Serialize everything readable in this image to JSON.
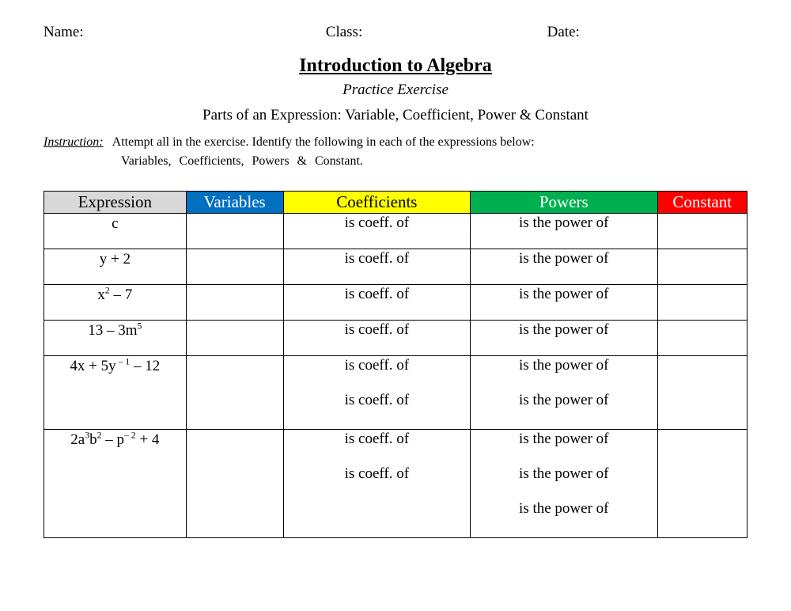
{
  "header": {
    "name": "Name:",
    "class": "Class:",
    "date": "Date:"
  },
  "title": "Introduction to Algebra",
  "subtitle": "Practice Exercise",
  "topic": "Parts of an Expression: Variable, Coefficient, Power & Constant",
  "instruction": {
    "label": "Instruction:",
    "text": "Attempt all in the exercise. Identify the following in each of the expressions below:",
    "sub": "Variables,   Coefficients,   Powers  &   Constant."
  },
  "table": {
    "columns": [
      {
        "label": "Expression",
        "bg": "#d9d9d9",
        "fg": "#000000",
        "width": "19%"
      },
      {
        "label": "Variables",
        "bg": "#0070c0",
        "fg": "#ffffff",
        "width": "13%"
      },
      {
        "label": "Coefficients",
        "bg": "#ffff00",
        "fg": "#000000",
        "width": "25%"
      },
      {
        "label": "Powers",
        "bg": "#00b050",
        "fg": "#ffffff",
        "width": "25%"
      },
      {
        "label": "Constant",
        "bg": "#ff0000",
        "fg": "#ffffff",
        "width": "12%"
      }
    ],
    "coeff_text": "is coeff. of",
    "power_text": "is the power of",
    "rows": [
      {
        "expression_html": "c",
        "coeff_lines": 1,
        "power_lines": 1
      },
      {
        "expression_html": "y + 2",
        "coeff_lines": 1,
        "power_lines": 1
      },
      {
        "expression_html": "x<sup>2</sup> – 7",
        "coeff_lines": 1,
        "power_lines": 1
      },
      {
        "expression_html": "13 – 3m<sup>5</sup>",
        "coeff_lines": 1,
        "power_lines": 1
      },
      {
        "expression_html": "4x + 5y<sup> – 1</sup> – 12",
        "coeff_lines": 2,
        "power_lines": 2
      },
      {
        "expression_html": "2a<sup>3</sup>b<sup>2</sup> – p<sup>– 2</sup> + 4",
        "coeff_lines": 2,
        "power_lines": 3
      }
    ]
  }
}
